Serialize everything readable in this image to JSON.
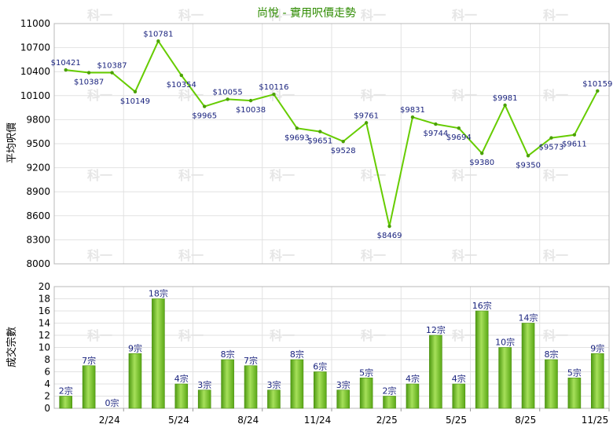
{
  "chart_data": [
    {
      "type": "line",
      "title": "尚悅 - 實用呎價走勢",
      "ylabel": "平均呎價",
      "ylim": [
        8000,
        11000
      ],
      "yticks": [
        8000,
        8300,
        8600,
        8900,
        9200,
        9500,
        9800,
        10100,
        10400,
        10700,
        11000
      ],
      "color": "#66cc00",
      "values": [
        10421,
        10387,
        10387,
        10149,
        10781,
        10354,
        9965,
        10055,
        10038,
        10116,
        9693,
        9651,
        9528,
        9761,
        8469,
        9831,
        9744,
        9694,
        9380,
        9981,
        9350,
        9573,
        9611,
        10159
      ],
      "labels": [
        "$10421",
        "$10387",
        "$10387",
        "$10149",
        "$10781",
        "$10354",
        "$9965",
        "$10055",
        "$10038",
        "$10116",
        "$9693",
        "$9651",
        "$9528",
        "$9761",
        "$8469",
        "$9831",
        "$9744",
        "$9694",
        "$9380",
        "$9981",
        "$9350",
        "$9573",
        "$9611",
        "$10159"
      ],
      "grid": true
    },
    {
      "type": "bar",
      "ylabel": "成交宗數",
      "ylim": [
        0,
        20
      ],
      "yticks": [
        0,
        2,
        4,
        6,
        8,
        10,
        12,
        14,
        16,
        18,
        20
      ],
      "color": "#66bb22",
      "values": [
        2,
        7,
        0,
        9,
        18,
        4,
        3,
        8,
        7,
        3,
        8,
        6,
        3,
        5,
        2,
        4,
        12,
        4,
        16,
        10,
        14,
        8,
        5,
        9
      ],
      "labels": [
        "2宗",
        "7宗",
        "0宗",
        "9宗",
        "18宗",
        "4宗",
        "3宗",
        "8宗",
        "7宗",
        "3宗",
        "8宗",
        "6宗",
        "3宗",
        "5宗",
        "2宗",
        "4宗",
        "12宗",
        "4宗",
        "16宗",
        "10宗",
        "14宗",
        "8宗",
        "5宗",
        "9宗"
      ],
      "x_tick_labels": [
        {
          "index": 2,
          "label": "2/24"
        },
        {
          "index": 5,
          "label": "5/24"
        },
        {
          "index": 8,
          "label": "8/24"
        },
        {
          "index": 11,
          "label": "11/24"
        },
        {
          "index": 14,
          "label": "2/25"
        },
        {
          "index": 17,
          "label": "5/25"
        },
        {
          "index": 20,
          "label": "8/25"
        },
        {
          "index": 23,
          "label": "11/25"
        }
      ],
      "grid": true
    }
  ],
  "watermark": "科一"
}
